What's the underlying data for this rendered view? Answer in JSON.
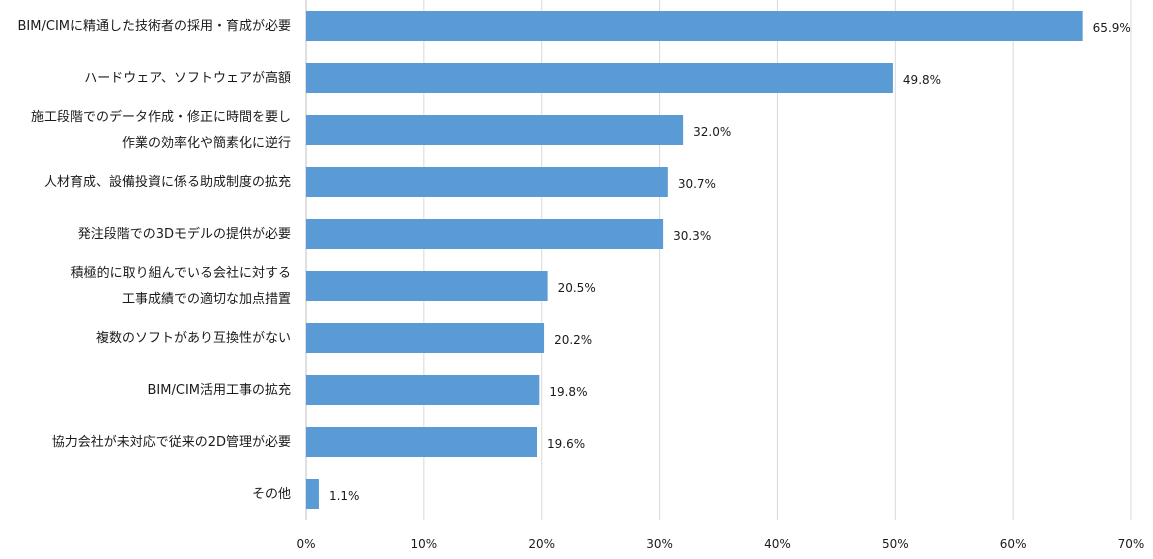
{
  "chart_data": {
    "type": "bar",
    "orientation": "horizontal",
    "categories": [
      [
        "BIM/CIMに精通した技術者の採用・育成が必要"
      ],
      [
        "ハードウェア、ソフトウェアが高額"
      ],
      [
        "施工段階でのデータ作成・修正に時間を要し",
        "作業の効率化や簡素化に逆行"
      ],
      [
        "人材育成、設備投資に係る助成制度の拡充"
      ],
      [
        "発注段階での3Dモデルの提供が必要"
      ],
      [
        "積極的に取り組んでいる会社に対する",
        "工事成績での適切な加点措置"
      ],
      [
        "複数のソフトがあり互換性がない"
      ],
      [
        "BIM/CIM活用工事の拡充"
      ],
      [
        "協力会社が未対応で従来の2D管理が必要"
      ],
      [
        "その他"
      ]
    ],
    "values": [
      65.9,
      49.8,
      32.0,
      30.7,
      30.3,
      20.5,
      20.2,
      19.8,
      19.6,
      1.1
    ],
    "value_labels": [
      "65.9%",
      "49.8%",
      "32.0%",
      "30.7%",
      "30.3%",
      "20.5%",
      "20.2%",
      "19.8%",
      "19.6%",
      "1.1%"
    ],
    "xlim": [
      0,
      70
    ],
    "xticks": [
      0,
      10,
      20,
      30,
      40,
      50,
      60,
      70
    ],
    "xtick_labels": [
      "0%",
      "10%",
      "20%",
      "30%",
      "40%",
      "50%",
      "60%",
      "70%"
    ],
    "grid": true,
    "legend": "none",
    "bar_color": "#5b9bd5",
    "title": "",
    "xlabel": "",
    "ylabel": ""
  }
}
